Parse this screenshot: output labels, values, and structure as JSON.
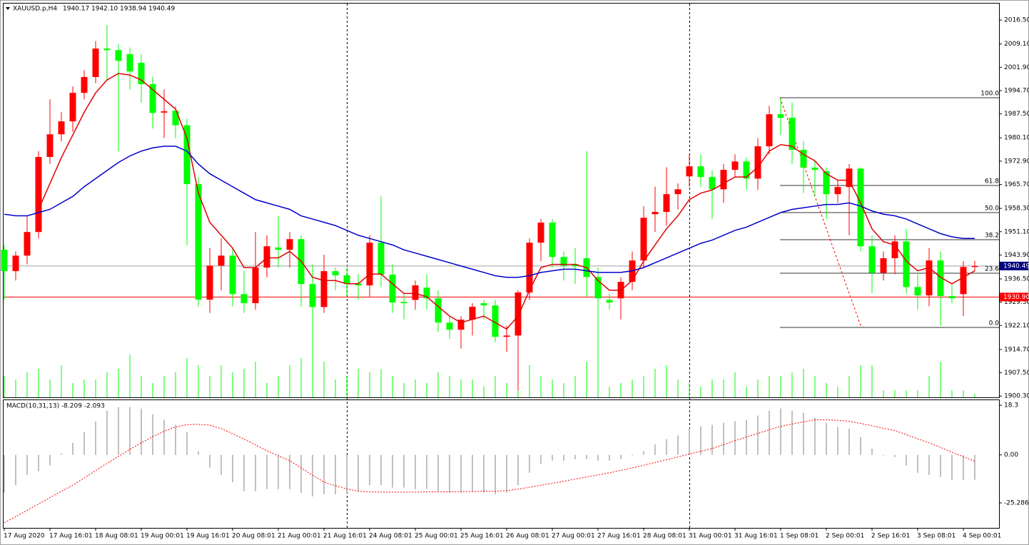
{
  "chart_data": {
    "type": "candlestick",
    "symbol": "XAUUSD.p,H4",
    "header_values": [
      "1940.17",
      "1942.10",
      "1938.94",
      "1940.49"
    ],
    "categories": [
      "17 Aug 2020",
      null,
      null,
      null,
      "17 Aug 16:01",
      null,
      null,
      null,
      "18 Aug 08:01",
      null,
      null,
      null,
      "19 Aug 00:01",
      null,
      null,
      null,
      "19 Aug 16:01",
      null,
      null,
      null,
      "20 Aug 08:01",
      null,
      null,
      null,
      "21 Aug 00:01",
      null,
      null,
      null,
      "21 Aug 16:01",
      null,
      null,
      null,
      "24 Aug 08:01",
      null,
      null,
      null,
      "25 Aug 00:01",
      null,
      null,
      null,
      "25 Aug 16:01",
      null,
      null,
      null,
      "26 Aug 08:01",
      null,
      null,
      null,
      "27 Aug 00:01",
      null,
      null,
      null,
      "27 Aug 16:01",
      null,
      null,
      null,
      "28 Aug 08:01",
      null,
      null,
      null,
      "31 Aug 00:01",
      null,
      null,
      null,
      "31 Aug 16:01",
      null,
      null,
      null,
      "1 Sep 08:01",
      null,
      null,
      null,
      "2 Sep 00:01",
      null,
      null,
      null,
      "2 Sep 16:01",
      null,
      null,
      null,
      "3 Sep 08:01",
      null,
      null,
      null,
      "4 Sep 00:01",
      null
    ],
    "open": [
      1945.5,
      1938.9,
      1943.7,
      1951,
      1974.2,
      1981.2,
      1985.2,
      1994,
      1998.9,
      2007.7,
      2007.2,
      2006,
      2003.3,
      1996.7,
      1987.9,
      1988.5,
      1984,
      1965.8,
      1930.1,
      1940.6,
      1943.7,
      1931.8,
      1929,
      1940,
      1946.2,
      1945.5,
      1948.8,
      1934.9,
      1927.8,
      1938.9,
      1937.6,
      1935.1,
      1934.5,
      1947.7,
      1937.8,
      1929.4,
      1930,
      1933.8,
      1930.5,
      1923,
      1920.8,
      1923.9,
      1929,
      1928.3,
      1918.6,
      1919,
      1932.3,
      1947.7,
      1953.9,
      1943.3,
      1941.1,
      1942.9,
      1937.1,
      1930,
      1930.5,
      1935.6,
      1942.2,
      1956.5,
      1957.2,
      1962.7,
      1968.2,
      1971.3,
      1968,
      1964.2,
      1970.2,
      1972.8,
      1967.5,
      1977.5,
      1987.4,
      1986.3,
      1976.4,
      1970.9,
      1969.8,
      1962.7,
      1964.9,
      1970.6,
      1946.6,
      1938.4,
      1942.9,
      1948.1,
      1934,
      1931.4,
      1942.2,
      1931.2,
      1931.8,
      1940.17
    ],
    "high": [
      1947,
      1945,
      1956,
      1976,
      1992,
      1988,
      1996,
      2001,
      2010,
      2015,
      2009,
      2008,
      2006,
      1999,
      1995,
      1990,
      1986,
      1968,
      1946,
      1949,
      1946,
      1939,
      1951,
      1950,
      1956,
      1951,
      1950,
      1941,
      1944,
      1940,
      1940,
      1938,
      1950,
      1962,
      1941,
      1932,
      1936,
      1938,
      1933,
      1925,
      1925,
      1929,
      1930,
      1930,
      1922,
      1933,
      1949,
      1955,
      1955,
      1945,
      1946,
      1976,
      1940,
      1932,
      1937,
      1945,
      1959,
      1965,
      1971,
      1966,
      1975,
      1975,
      1970,
      1972,
      1975,
      1974,
      1980,
      1990,
      1992.5,
      1991,
      1979,
      1973,
      1971,
      1967,
      1972,
      1971,
      1950,
      1945,
      1950,
      1952,
      1938,
      1946,
      1945,
      1935,
      1942,
      1942.1
    ],
    "low": [
      1930,
      1936,
      1941,
      1949,
      1972,
      1979,
      1982,
      1992,
      1997,
      1998,
      1976,
      1995,
      1991,
      1983,
      1980,
      1980,
      1947,
      1928,
      1926,
      1933,
      1928,
      1926,
      1927,
      1937,
      1940,
      1940,
      1928,
      1908,
      1926,
      1933,
      1931,
      1930,
      1931,
      1934,
      1926,
      1924,
      1927,
      1927,
      1920,
      1918,
      1915,
      1919,
      1924,
      1917,
      1914,
      1902,
      1930,
      1942,
      1940,
      1936,
      1935,
      1931,
      1904,
      1927,
      1924,
      1933,
      1940,
      1951,
      1953,
      1958,
      1965,
      1965,
      1955,
      1960,
      1968,
      1964,
      1964,
      1975,
      1981,
      1972,
      1963,
      1962,
      1955,
      1960,
      1950,
      1945,
      1932,
      1936,
      1938,
      1932,
      1927,
      1928,
      1922,
      1929,
      1925,
      1938.94
    ],
    "close": [
      1938.9,
      1943.7,
      1951,
      1974.2,
      1981.2,
      1985.2,
      1994,
      1998.9,
      2007.7,
      2007.2,
      2003.9,
      2000.6,
      1996.7,
      1987.8,
      1988.3,
      1984,
      1965.8,
      1930.1,
      1940.6,
      1943.7,
      1931.8,
      1929,
      1940,
      1946.6,
      1945.5,
      1948.8,
      1934.9,
      1927.8,
      1938.9,
      1937.6,
      1934.9,
      1934.5,
      1947.7,
      1937.8,
      1929.2,
      1929,
      1934.5,
      1930.5,
      1923,
      1920.8,
      1923.9,
      1927.9,
      1928.3,
      1918.6,
      1919,
      1932.3,
      1947.7,
      1953.9,
      1943.3,
      1940.6,
      1940.4,
      1937.1,
      1930.5,
      1929.2,
      1935.6,
      1942.2,
      1955.4,
      1957.2,
      1962.7,
      1964.2,
      1971.3,
      1968,
      1964.2,
      1970.2,
      1972.8,
      1967.5,
      1977.5,
      1987.4,
      1986.3,
      1976.4,
      1970.9,
      1970.2,
      1962.7,
      1964.9,
      1970.6,
      1946.6,
      1938.4,
      1942.9,
      1948.1,
      1934,
      1931.4,
      1942.2,
      1931.2,
      1930.5,
      1940.2,
      1940.49
    ],
    "up_color": "#ff0000",
    "down_color": "#00ff00",
    "volumes": [
      30,
      25,
      35,
      40,
      25,
      45,
      20,
      25,
      25,
      35,
      40,
      60,
      30,
      20,
      30,
      35,
      55,
      45,
      30,
      45,
      35,
      40,
      50,
      20,
      30,
      45,
      55,
      50,
      50,
      25,
      30,
      40,
      35,
      40,
      30,
      20,
      25,
      20,
      35,
      30,
      25,
      25,
      15,
      30,
      20,
      30,
      45,
      30,
      25,
      20,
      30,
      50,
      60,
      15,
      20,
      25,
      30,
      40,
      45,
      25,
      20,
      15,
      25,
      25,
      35,
      15,
      25,
      30,
      30,
      35,
      40,
      30,
      20,
      15,
      30,
      45,
      45,
      10,
      10,
      10,
      10,
      30,
      50,
      10,
      10,
      5
    ],
    "volume_color": "#00ff00",
    "ylim": [
      1899.9,
      2021.6
    ],
    "yticks": [
      {
        "value": 2016.5,
        "label": "2016.50"
      },
      {
        "value": 2009.1,
        "label": "2009.10"
      },
      {
        "value": 2001.9,
        "label": "2001.90"
      },
      {
        "value": 1994.7,
        "label": "1994.70"
      },
      {
        "value": 1987.5,
        "label": "1987.50"
      },
      {
        "value": 1980.1,
        "label": "1980.10"
      },
      {
        "value": 1972.9,
        "label": "1972.90"
      },
      {
        "value": 1965.7,
        "label": "1965.70"
      },
      {
        "value": 1958.3,
        "label": "1958.30"
      },
      {
        "value": 1951.1,
        "label": "1951.10"
      },
      {
        "value": 1943.9,
        "label": "1943.90"
      },
      {
        "value": 1936.5,
        "label": "1936.50"
      },
      {
        "value": 1929.3,
        "label": "1929.30"
      },
      {
        "value": 1922.1,
        "label": "1922.10"
      },
      {
        "value": 1914.7,
        "label": "1914.70"
      },
      {
        "value": 1907.5,
        "label": "1907.50"
      },
      {
        "value": 1900.3,
        "label": "1900.30"
      }
    ],
    "moving_averages": [
      {
        "color": "#e00000",
        "values": [
          null,
          null,
          null,
          1958,
          1966,
          1974,
          1981,
          1988,
          1994,
          1998,
          2000,
          1999.5,
          1998,
          1995,
          1992,
          1989,
          1980,
          1963,
          1954,
          1950,
          1946,
          1940,
          1940,
          1943,
          1943,
          1945,
          1942,
          1937,
          1936,
          1936,
          1935,
          1935,
          1938,
          1938,
          1935,
          1932,
          1932,
          1931,
          1928,
          1925,
          1923,
          1924,
          1925,
          1923,
          1921,
          1925,
          1933,
          1940,
          1941,
          1941,
          1941,
          1940,
          1936,
          1933,
          1933,
          1936,
          1942,
          1947,
          1952,
          1956,
          1961,
          1963,
          1964,
          1966,
          1968,
          1968,
          1971,
          1976,
          1978,
          1977.5,
          1975,
          1973,
          1969,
          1967,
          1967,
          1960,
          1952,
          1948,
          1947,
          1942,
          1939,
          1940,
          1937,
          1935,
          1937,
          1939
        ]
      },
      {
        "color": "#0000cd",
        "values": [
          1956.5,
          1956,
          1956,
          1957,
          1958,
          1960,
          1962,
          1965,
          1967.5,
          1970,
          1972.5,
          1974.5,
          1976,
          1977,
          1977.5,
          1977.5,
          1976,
          1972,
          1969,
          1967,
          1965,
          1963,
          1961,
          1960,
          1959,
          1958,
          1956,
          1955,
          1954,
          1953,
          1951.5,
          1950,
          1949,
          1948,
          1947,
          1945.5,
          1944.5,
          1943.5,
          1942.5,
          1941.5,
          1940.5,
          1939.5,
          1938.5,
          1937.5,
          1937,
          1937,
          1937.5,
          1938.5,
          1939,
          1939.5,
          1939.5,
          1939,
          1938.5,
          1938.5,
          1938.5,
          1939,
          1940,
          1941.5,
          1943,
          1944.5,
          1946,
          1947.5,
          1948.5,
          1950,
          1951.5,
          1952.5,
          1954,
          1955.5,
          1957,
          1958,
          1958.5,
          1959,
          1959.5,
          1959.5,
          1960,
          1959,
          1957.5,
          1956.5,
          1956,
          1955,
          1953.5,
          1952,
          1950.5,
          1949.5,
          1949,
          1949
        ]
      }
    ],
    "price_lines": [
      {
        "value": 1940.49,
        "label": "1940.49",
        "color": "#000080",
        "line_color": "#a0a0a0"
      },
      {
        "value": 1930.9,
        "label": "1930.90",
        "color": "#ff0000",
        "line_color": "#ff0000"
      }
    ],
    "fibonacci": {
      "high": 1992.5,
      "low": 1921.5,
      "color": "#333333",
      "trend_color": "#ff0000",
      "levels": [
        {
          "value": 100,
          "label": "100.0"
        },
        {
          "value": 61.8,
          "label": "61.8"
        },
        {
          "value": 50,
          "label": "50.0"
        },
        {
          "value": 38.2,
          "label": "38.2"
        },
        {
          "value": 23.6,
          "label": "23.6"
        },
        {
          "value": 0,
          "label": "0.0"
        }
      ]
    },
    "macd": {
      "title": "MACD(10,31,13) -8.209 -2.093",
      "histogram_color": "#c0c0c0",
      "signal_color": "#ff0000",
      "ylim": [
        -24.1,
        18.3
      ],
      "yticks": [
        18.3,
        {
          "value": 0,
          "label": "0.00"
        },
        {
          "value": -25.286,
          "label": "-25.286"
        }
      ],
      "histogram": [
        -12.5,
        -10,
        -6.6,
        -5.4,
        -3.5,
        0.5,
        4,
        7.5,
        11,
        14.6,
        15.8,
        15.8,
        15.3,
        13.4,
        11.6,
        9.9,
        7.5,
        1.2,
        -4.2,
        -6.6,
        -9,
        -12,
        -12,
        -11.3,
        -11.3,
        -11.3,
        -12.5,
        -13.7,
        -13,
        -13,
        -12.5,
        -12,
        -10,
        -10,
        -10.8,
        -10.8,
        -11.3,
        -11.3,
        -12,
        -12.5,
        -12.5,
        -12,
        -12.5,
        -13,
        -12.5,
        -10,
        -5.9,
        -3,
        -1.9,
        -1.9,
        -1.4,
        -1.4,
        -1.9,
        -1.9,
        -1.4,
        -0.2,
        1.2,
        3.5,
        5.2,
        6.4,
        8.7,
        9.4,
        9.9,
        10.6,
        11.1,
        11.6,
        13,
        14.6,
        15.3,
        14.6,
        13.9,
        12.3,
        10.6,
        9.2,
        8.7,
        5.9,
        2.1,
        -0.2,
        -0.7,
        -3.5,
        -5.9,
        -6.6,
        -7.3,
        -8.3,
        -8.3,
        -8.209
      ],
      "signal": [
        -22.4,
        -20.4,
        -18.3,
        -16.2,
        -14.1,
        -12,
        -10,
        -7.6,
        -5.2,
        -2.8,
        -0.5,
        1.8,
        4,
        6,
        7.8,
        9.2,
        10,
        10.1,
        9.8,
        8.7,
        7,
        5.2,
        3.3,
        1.4,
        -0.3,
        -1.9,
        -4.3,
        -6.7,
        -9,
        -10.2,
        -11.2,
        -12,
        -12.2,
        -12.3,
        -12.3,
        -12.3,
        -12.3,
        -12.2,
        -12.2,
        -12.2,
        -12.1,
        -12.1,
        -12,
        -12,
        -11.8,
        -11.3,
        -10.7,
        -10,
        -9.4,
        -8.7,
        -8,
        -7.3,
        -6.6,
        -5.9,
        -5.1,
        -4.3,
        -3.4,
        -2.5,
        -1.6,
        -0.7,
        0.3,
        1.2,
        2.1,
        3.4,
        4.7,
        5.9,
        7.1,
        8.3,
        9.4,
        10.2,
        10.9,
        11.6,
        11.6,
        11.4,
        11.1,
        10.4,
        9.6,
        8.8,
        8,
        6.7,
        5.3,
        4,
        2.5,
        0.9,
        -0.6,
        -2.093
      ]
    }
  }
}
